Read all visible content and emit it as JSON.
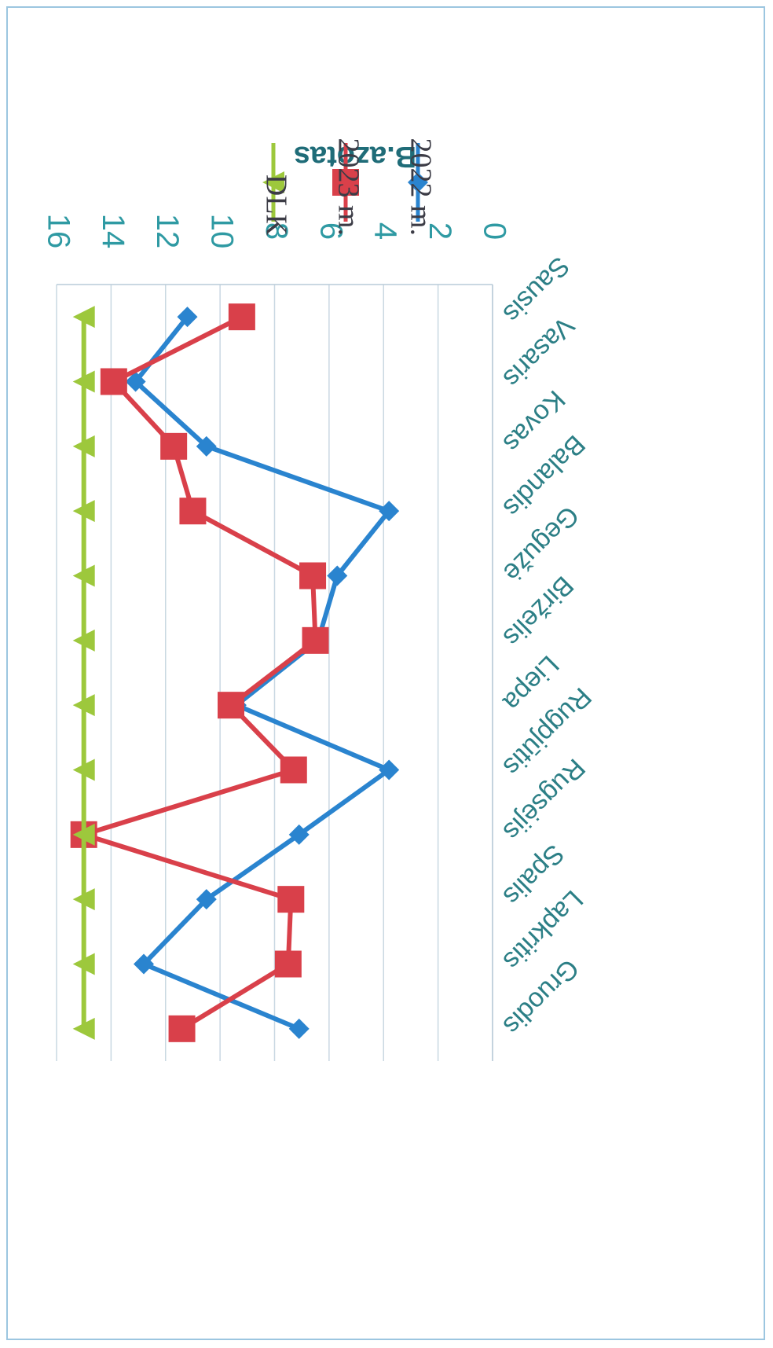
{
  "chart_data": {
    "type": "line",
    "orientation": "rotated-180",
    "ylabel": "B.azotas",
    "ylim": [
      0,
      16
    ],
    "yticks": [
      "0",
      "2",
      "4",
      "6",
      "8",
      "10",
      "12",
      "14",
      "16"
    ],
    "categories": [
      "Sausis",
      "Vasaris",
      "Kovas",
      "Balandis",
      "Gegužė",
      "Birželis",
      "Liepa",
      "Rugpjūtis",
      "Rugsėjis",
      "Spalis",
      "Lapkritis",
      "Gruodis"
    ],
    "grid": true,
    "legend_position": "right",
    "series": [
      {
        "name": "2022 m.",
        "color": "#2a84cf",
        "marker": "diamond",
        "values": [
          11.2,
          13.1,
          10.5,
          3.8,
          5.7,
          6.4,
          9.4,
          3.8,
          7.1,
          10.5,
          12.8,
          7.1
        ]
      },
      {
        "name": "2023 m.",
        "color": "#d9404a",
        "marker": "square",
        "values": [
          9.2,
          13.9,
          11.7,
          11.0,
          6.6,
          6.5,
          9.6,
          7.3,
          15.0,
          7.4,
          7.5,
          11.4
        ]
      },
      {
        "name": "DLK",
        "color": "#9dc83c",
        "marker": "triangle",
        "values": [
          15,
          15,
          15,
          15,
          15,
          15,
          15,
          15,
          15,
          15,
          15,
          15
        ]
      }
    ]
  }
}
